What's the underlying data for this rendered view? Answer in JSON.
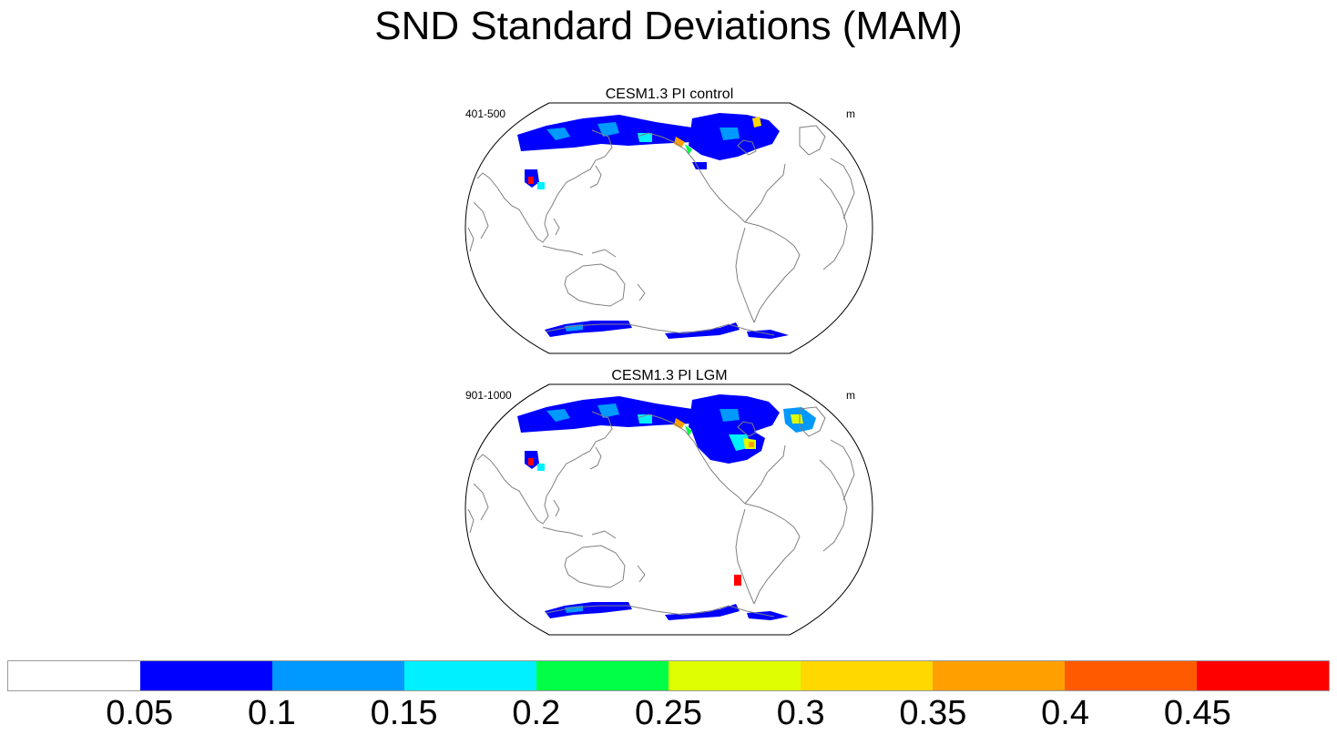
{
  "title": "SND Standard Deviations (MAM)",
  "panels": [
    {
      "title": "CESM1.3 PI control",
      "left_label": "401-500",
      "right_label": "m"
    },
    {
      "title": "CESM1.3 PI LGM",
      "left_label": "901-1000",
      "right_label": "m"
    }
  ],
  "colorbar": {
    "colors": [
      "#ffffff",
      "#0000ff",
      "#0099ff",
      "#00f0ff",
      "#00ff46",
      "#dfff00",
      "#ffd800",
      "#ffa000",
      "#ff5a00",
      "#ff0000"
    ],
    "labels": [
      "0.05",
      "0.1",
      "0.15",
      "0.2",
      "0.25",
      "0.3",
      "0.35",
      "0.4",
      "0.45"
    ]
  },
  "colors": {
    "coast": "#808080",
    "border": "#000000"
  }
}
